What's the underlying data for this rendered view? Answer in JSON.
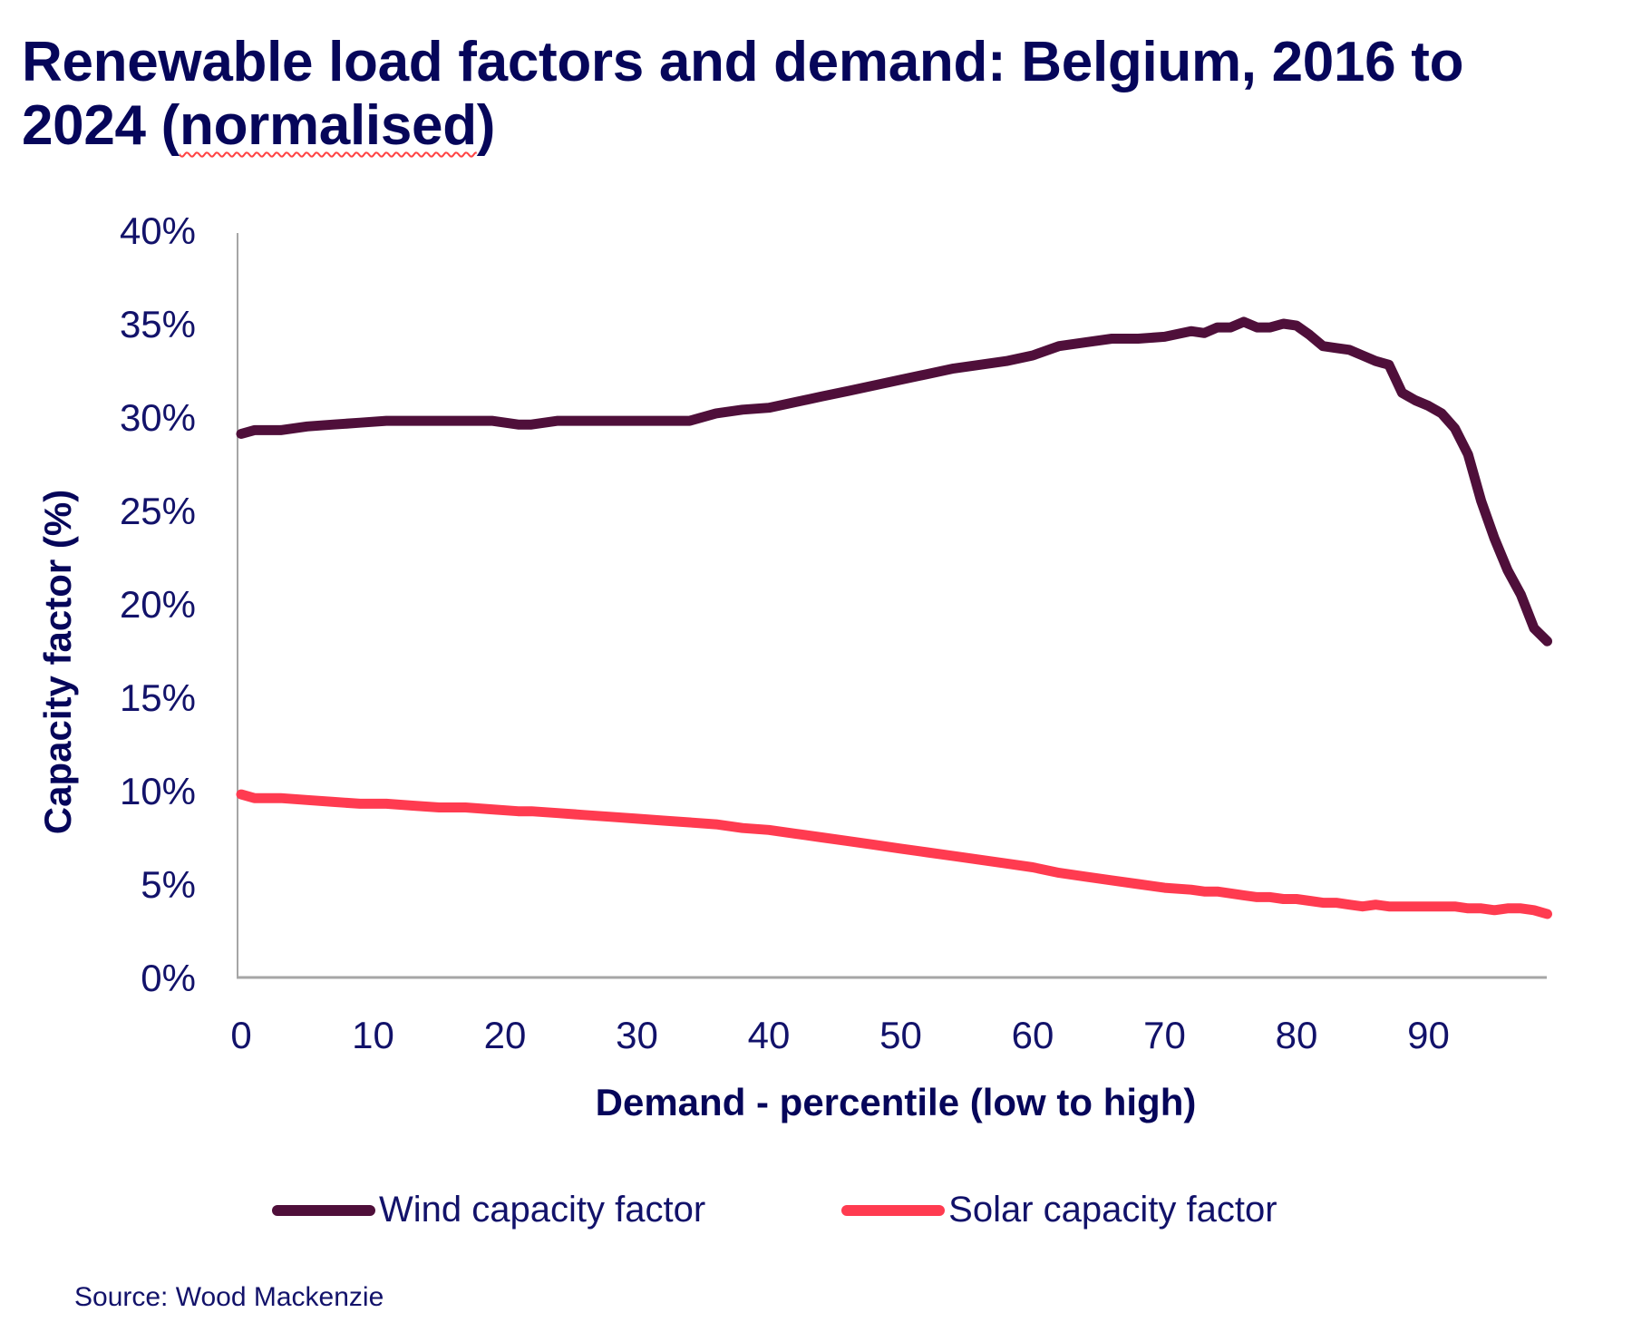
{
  "title": {
    "line1": "Renewable load factors and demand: Belgium, 2016 to",
    "line2_prefix": "2024 (",
    "line2_word": "normalised",
    "line2_suffix": ")"
  },
  "source": "Source: Wood Mackenzie",
  "colors": {
    "wind": "#4f0f3a",
    "solar": "#ff3b50",
    "text": "#0a0a5c",
    "axis": "#a6a6a6"
  },
  "chart_data": {
    "type": "line",
    "title": "Renewable load factors and demand: Belgium, 2016 to 2024 (normalised)",
    "xlabel": "Demand - percentile (low to high)",
    "ylabel": "Capacity factor (%)",
    "xlim": [
      0,
      99
    ],
    "ylim": [
      0,
      40
    ],
    "x_ticks": [
      0,
      10,
      20,
      30,
      40,
      50,
      60,
      70,
      80,
      90
    ],
    "y_ticks": [
      0,
      5,
      10,
      15,
      20,
      25,
      30,
      35,
      40
    ],
    "y_tick_labels": [
      "0%",
      "5%",
      "10%",
      "15%",
      "20%",
      "25%",
      "30%",
      "35%",
      "40%"
    ],
    "grid": false,
    "legend_position": "bottom",
    "x": [
      0,
      1,
      3,
      5,
      7,
      9,
      11,
      13,
      15,
      17,
      19,
      21,
      22,
      24,
      26,
      28,
      30,
      32,
      34,
      36,
      38,
      40,
      42,
      44,
      46,
      48,
      50,
      52,
      54,
      56,
      58,
      60,
      62,
      64,
      66,
      68,
      70,
      72,
      73,
      74,
      75,
      76,
      77,
      78,
      79,
      80,
      81,
      82,
      83,
      84,
      85,
      86,
      87,
      88,
      89,
      90,
      91,
      92,
      93,
      94,
      95,
      96,
      97,
      98,
      99
    ],
    "series": [
      {
        "name": "Wind capacity factor",
        "color": "#4f0f3a",
        "values": [
          29.1,
          29.3,
          29.3,
          29.5,
          29.6,
          29.7,
          29.8,
          29.8,
          29.8,
          29.8,
          29.8,
          29.6,
          29.6,
          29.8,
          29.8,
          29.8,
          29.8,
          29.8,
          29.8,
          30.2,
          30.4,
          30.5,
          30.8,
          31.1,
          31.4,
          31.7,
          32.0,
          32.3,
          32.6,
          32.8,
          33.0,
          33.3,
          33.8,
          34.0,
          34.2,
          34.2,
          34.3,
          34.6,
          34.5,
          34.8,
          34.8,
          35.1,
          34.8,
          34.8,
          35.0,
          34.9,
          34.4,
          33.8,
          33.7,
          33.6,
          33.3,
          33.0,
          32.8,
          31.3,
          30.9,
          30.6,
          30.2,
          29.4,
          28.0,
          25.5,
          23.5,
          21.8,
          20.5,
          18.7,
          18.0
        ]
      },
      {
        "name": "Solar capacity factor",
        "color": "#ff3b50",
        "values": [
          9.8,
          9.6,
          9.6,
          9.5,
          9.4,
          9.3,
          9.3,
          9.2,
          9.1,
          9.1,
          9.0,
          8.9,
          8.9,
          8.8,
          8.7,
          8.6,
          8.5,
          8.4,
          8.3,
          8.2,
          8.0,
          7.9,
          7.7,
          7.5,
          7.3,
          7.1,
          6.9,
          6.7,
          6.5,
          6.3,
          6.1,
          5.9,
          5.6,
          5.4,
          5.2,
          5.0,
          4.8,
          4.7,
          4.6,
          4.6,
          4.5,
          4.4,
          4.3,
          4.3,
          4.2,
          4.2,
          4.1,
          4.0,
          4.0,
          3.9,
          3.8,
          3.9,
          3.8,
          3.8,
          3.8,
          3.8,
          3.8,
          3.8,
          3.7,
          3.7,
          3.6,
          3.7,
          3.7,
          3.6,
          3.4
        ]
      }
    ]
  }
}
